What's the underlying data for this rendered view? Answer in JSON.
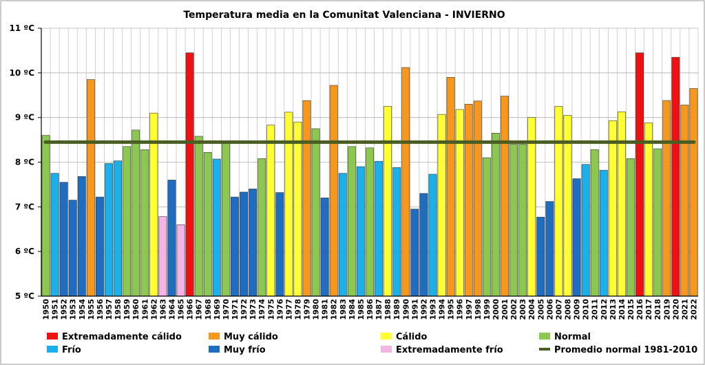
{
  "chart_data": {
    "type": "bar",
    "title": "Temperatura media en la Comunitat Valenciana - INVIERNO",
    "xlabel": "",
    "ylabel": "",
    "ylim": [
      5,
      11
    ],
    "yticks": [
      5,
      6,
      7,
      8,
      9,
      10,
      11
    ],
    "ytick_labels": [
      "5 ºC",
      "6 ºC",
      "7 ºC",
      "8 ºC",
      "9 ºC",
      "10 ºC",
      "11 ºC"
    ],
    "grid": true,
    "legend_position": "bottom",
    "categories": [
      "1950",
      "1951",
      "1952",
      "1953",
      "1954",
      "1955",
      "1956",
      "1957",
      "1958",
      "1959",
      "1960",
      "1961",
      "1962",
      "1963",
      "1964",
      "1965",
      "1966",
      "1967",
      "1968",
      "1969",
      "1970",
      "1971",
      "1972",
      "1973",
      "1974",
      "1975",
      "1976",
      "1977",
      "1978",
      "1979",
      "1980",
      "1981",
      "1982",
      "1983",
      "1984",
      "1985",
      "1986",
      "1987",
      "1988",
      "1989",
      "1990",
      "1991",
      "1992",
      "1993",
      "1994",
      "1995",
      "1996",
      "1997",
      "1998",
      "1999",
      "2000",
      "2001",
      "2002",
      "2003",
      "2004",
      "2005",
      "2006",
      "2007",
      "2008",
      "2009",
      "2010",
      "2011",
      "2012",
      "2013",
      "2014",
      "2015",
      "2016",
      "2017",
      "2018",
      "2019",
      "2020",
      "2021",
      "2022"
    ],
    "values": [
      8.6,
      7.75,
      7.55,
      7.15,
      7.68,
      9.85,
      7.22,
      7.97,
      8.03,
      8.35,
      8.72,
      8.28,
      9.1,
      6.78,
      7.6,
      6.6,
      10.45,
      8.58,
      8.22,
      8.07,
      8.48,
      7.22,
      7.33,
      7.4,
      8.08,
      8.83,
      7.32,
      9.12,
      8.9,
      9.38,
      8.75,
      7.2,
      9.72,
      7.75,
      8.35,
      7.9,
      8.32,
      8.02,
      9.25,
      7.88,
      10.12,
      6.95,
      7.3,
      7.73,
      9.07,
      9.9,
      9.18,
      9.3,
      9.37,
      8.1,
      8.65,
      9.48,
      8.4,
      8.4,
      9.0,
      6.77,
      7.12,
      9.25,
      9.05,
      7.63,
      7.95,
      8.28,
      7.82,
      8.93,
      9.13,
      8.08,
      10.45,
      8.88,
      8.3,
      9.38,
      10.35,
      9.28,
      9.65
    ],
    "category_class": [
      "normal",
      "frio",
      "muy_frio",
      "muy_frio",
      "muy_frio",
      "muy_calido",
      "muy_frio",
      "frio",
      "frio",
      "normal",
      "normal",
      "normal",
      "calido",
      "ext_frio",
      "muy_frio",
      "ext_frio",
      "ext_calido",
      "normal",
      "normal",
      "frio",
      "normal",
      "muy_frio",
      "muy_frio",
      "muy_frio",
      "normal",
      "calido",
      "muy_frio",
      "calido",
      "calido",
      "muy_calido",
      "normal",
      "muy_frio",
      "muy_calido",
      "frio",
      "normal",
      "frio",
      "normal",
      "frio",
      "calido",
      "frio",
      "muy_calido",
      "muy_frio",
      "muy_frio",
      "frio",
      "calido",
      "muy_calido",
      "calido",
      "muy_calido",
      "muy_calido",
      "normal",
      "normal",
      "muy_calido",
      "normal",
      "normal",
      "calido",
      "muy_frio",
      "muy_frio",
      "calido",
      "calido",
      "muy_frio",
      "frio",
      "normal",
      "frio",
      "calido",
      "calido",
      "normal",
      "ext_calido",
      "calido",
      "normal",
      "muy_calido",
      "ext_calido",
      "muy_calido",
      "muy_calido"
    ],
    "reference_line": {
      "name": "Promedio normal 1981-2010",
      "value": 8.45,
      "color": "#4a5e23"
    },
    "legend": [
      {
        "key": "ext_calido",
        "label": "Extremadamente cálido",
        "color": "#ee1111"
      },
      {
        "key": "muy_calido",
        "label": "Muy cálido",
        "color": "#f5981d"
      },
      {
        "key": "calido",
        "label": "Cálido",
        "color": "#ffff33"
      },
      {
        "key": "normal",
        "label": "Normal",
        "color": "#8cc850"
      },
      {
        "key": "frio",
        "label": "Frío",
        "color": "#1cb0ea"
      },
      {
        "key": "muy_frio",
        "label": "Muy frío",
        "color": "#1f6dc1"
      },
      {
        "key": "ext_frio",
        "label": "Extremadamente frío",
        "color": "#f2b5e6"
      },
      {
        "key": "promedio",
        "label": "Promedio normal 1981-2010",
        "color": "#4a5e23",
        "line": true
      }
    ]
  }
}
